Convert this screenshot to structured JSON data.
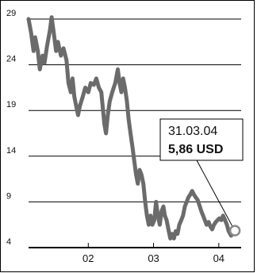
{
  "colors": {
    "line": "#6b6b6b",
    "grid": "#000000",
    "marker_fill": "#ffffff",
    "marker_stroke": "#8a8a8a",
    "callout_border": "#000000",
    "frame": "#000000"
  },
  "chart_data": {
    "type": "line",
    "title": "",
    "xlabel": "",
    "ylabel": "",
    "ylim": [
      4,
      29
    ],
    "yticks": [
      29,
      24,
      19,
      14,
      9,
      4
    ],
    "ytick_labels": [
      "29",
      "24",
      "19",
      "14",
      "9",
      "4"
    ],
    "xtick_labels": [
      {
        "date": "2002-01-01",
        "label": "02"
      },
      {
        "date": "2003-01-01",
        "label": "03"
      },
      {
        "date": "2004-01-01",
        "label": "04"
      }
    ],
    "xlim": [
      "2001-02-01",
      "2004-05-05"
    ],
    "grid": "horizontal",
    "legend": "none",
    "series": [
      {
        "points": [
          [
            "2001-02-01",
            29.0
          ],
          [
            "2001-02-15",
            27.5
          ],
          [
            "2001-03-01",
            25.5
          ],
          [
            "2001-03-10",
            27.0
          ],
          [
            "2001-03-25",
            25.5
          ],
          [
            "2001-04-05",
            23.5
          ],
          [
            "2001-04-20",
            25.0
          ],
          [
            "2001-05-01",
            24.2
          ],
          [
            "2001-05-15",
            26.0
          ],
          [
            "2001-06-01",
            27.8
          ],
          [
            "2001-06-10",
            29.2
          ],
          [
            "2001-06-25",
            27.0
          ],
          [
            "2001-07-05",
            25.5
          ],
          [
            "2001-07-15",
            26.5
          ],
          [
            "2001-08-01",
            25.0
          ],
          [
            "2001-08-15",
            25.8
          ],
          [
            "2001-09-01",
            24.5
          ],
          [
            "2001-09-12",
            22.0
          ],
          [
            "2001-09-25",
            21.0
          ],
          [
            "2001-10-05",
            22.5
          ],
          [
            "2001-10-15",
            20.5
          ],
          [
            "2001-10-25",
            19.5
          ],
          [
            "2001-11-05",
            18.5
          ],
          [
            "2001-11-15",
            19.5
          ],
          [
            "2001-12-01",
            20.5
          ],
          [
            "2001-12-15",
            21.5
          ],
          [
            "2002-01-01",
            21.0
          ],
          [
            "2002-01-15",
            22.0
          ],
          [
            "2002-02-01",
            21.8
          ],
          [
            "2002-02-15",
            22.5
          ],
          [
            "2002-03-01",
            21.5
          ],
          [
            "2002-03-15",
            21.0
          ],
          [
            "2002-04-01",
            17.5
          ],
          [
            "2002-04-10",
            16.5
          ],
          [
            "2002-04-20",
            18.5
          ],
          [
            "2002-05-01",
            20.0
          ],
          [
            "2002-05-15",
            21.0
          ],
          [
            "2002-06-01",
            22.0
          ],
          [
            "2002-06-15",
            23.5
          ],
          [
            "2002-06-25",
            22.0
          ],
          [
            "2002-07-05",
            21.0
          ],
          [
            "2002-07-15",
            22.5
          ],
          [
            "2002-07-25",
            21.5
          ],
          [
            "2002-08-05",
            20.0
          ],
          [
            "2002-08-15",
            18.0
          ],
          [
            "2002-08-25",
            16.5
          ],
          [
            "2002-09-05",
            15.0
          ],
          [
            "2002-09-15",
            13.5
          ],
          [
            "2002-09-25",
            12.0
          ],
          [
            "2002-10-05",
            11.0
          ],
          [
            "2002-10-15",
            12.5
          ],
          [
            "2002-10-25",
            12.0
          ],
          [
            "2002-11-05",
            11.0
          ],
          [
            "2002-11-15",
            9.0
          ],
          [
            "2002-11-25",
            7.5
          ],
          [
            "2002-12-05",
            6.5
          ],
          [
            "2002-12-15",
            7.5
          ],
          [
            "2002-12-25",
            6.5
          ],
          [
            "2003-01-05",
            7.0
          ],
          [
            "2003-01-15",
            9.0
          ],
          [
            "2003-01-25",
            7.5
          ],
          [
            "2003-02-05",
            6.5
          ],
          [
            "2003-02-15",
            8.0
          ],
          [
            "2003-02-25",
            8.5
          ],
          [
            "2003-03-05",
            7.5
          ],
          [
            "2003-03-15",
            7.0
          ],
          [
            "2003-03-25",
            6.0
          ],
          [
            "2003-04-05",
            5.0
          ],
          [
            "2003-04-15",
            5.5
          ],
          [
            "2003-04-25",
            5.0
          ],
          [
            "2003-05-05",
            5.8
          ],
          [
            "2003-05-15",
            5.5
          ],
          [
            "2003-05-25",
            6.5
          ],
          [
            "2003-06-05",
            7.0
          ],
          [
            "2003-06-15",
            7.5
          ],
          [
            "2003-06-25",
            8.5
          ],
          [
            "2003-07-05",
            9.0
          ],
          [
            "2003-07-15",
            9.5
          ],
          [
            "2003-07-25",
            9.8
          ],
          [
            "2003-08-05",
            10.2
          ],
          [
            "2003-08-15",
            9.8
          ],
          [
            "2003-08-25",
            9.5
          ],
          [
            "2003-09-05",
            9.2
          ],
          [
            "2003-09-15",
            8.6
          ],
          [
            "2003-09-25",
            8.0
          ],
          [
            "2003-10-05",
            7.5
          ],
          [
            "2003-10-15",
            7.0
          ],
          [
            "2003-10-25",
            6.5
          ],
          [
            "2003-11-05",
            6.8
          ],
          [
            "2003-11-15",
            6.3
          ],
          [
            "2003-11-25",
            6.0
          ],
          [
            "2003-12-05",
            6.5
          ],
          [
            "2003-12-15",
            6.8
          ],
          [
            "2003-12-25",
            7.0
          ],
          [
            "2004-01-05",
            7.2
          ],
          [
            "2004-01-15",
            7.0
          ],
          [
            "2004-01-25",
            7.5
          ],
          [
            "2004-02-05",
            7.0
          ],
          [
            "2004-02-15",
            6.5
          ],
          [
            "2004-02-25",
            5.8
          ],
          [
            "2004-03-10",
            5.3
          ],
          [
            "2004-03-31",
            5.86
          ]
        ]
      }
    ],
    "annotation": {
      "date": "2004-03-31",
      "value": 5.86,
      "date_label": "31.03.04",
      "value_label": "5,86 USD"
    }
  }
}
